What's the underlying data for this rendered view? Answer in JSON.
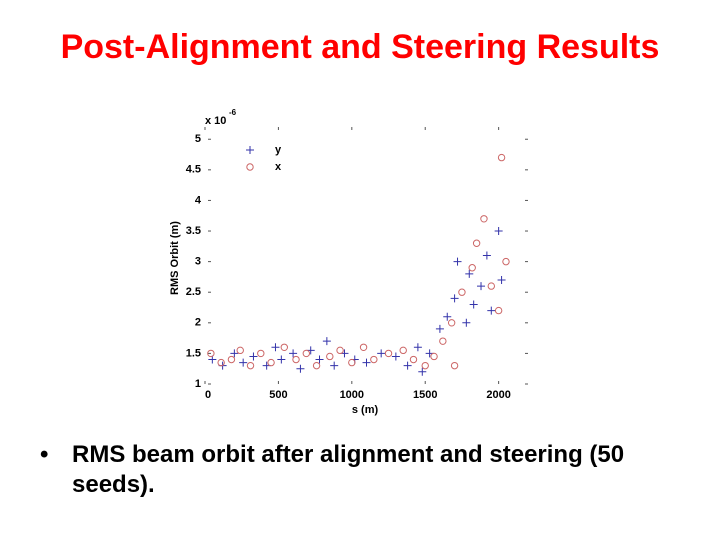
{
  "slide_title": "Post-Alignment and Steering Results",
  "chart_data": {
    "type": "scatter",
    "ylabel": "RMS Orbit (m)",
    "xlabel": "s (m)",
    "y_multiplier": "x 10",
    "y_multiplier_exponent": "-6",
    "xlim": [
      0,
      2200
    ],
    "xticks": [
      0,
      500,
      1000,
      1500,
      2000
    ],
    "ylim": [
      1,
      5.2
    ],
    "yticks": [
      1,
      1.5,
      2,
      2.5,
      3,
      3.5,
      4,
      4.5,
      5
    ],
    "grid": false,
    "series": [
      {
        "name": "y",
        "color": "#3333aa",
        "marker": "plus",
        "x": [
          50,
          120,
          200,
          260,
          330,
          420,
          480,
          520,
          600,
          650,
          720,
          780,
          830,
          880,
          950,
          1020,
          1100,
          1200,
          1300,
          1380,
          1450,
          1480,
          1530,
          1600,
          1650,
          1700,
          1720,
          1780,
          1800,
          1830,
          1880,
          1920,
          1950,
          2000,
          2020
        ],
        "values": [
          1.4,
          1.3,
          1.5,
          1.35,
          1.45,
          1.3,
          1.6,
          1.4,
          1.5,
          1.25,
          1.55,
          1.4,
          1.7,
          1.3,
          1.5,
          1.4,
          1.35,
          1.5,
          1.45,
          1.3,
          1.6,
          1.2,
          1.5,
          1.9,
          2.1,
          2.4,
          3.0,
          2.0,
          2.8,
          2.3,
          2.6,
          3.1,
          2.2,
          3.5,
          2.7
        ]
      },
      {
        "name": "x",
        "color": "#cc6666",
        "marker": "circle",
        "x": [
          40,
          110,
          180,
          240,
          310,
          380,
          450,
          540,
          620,
          690,
          760,
          850,
          920,
          1000,
          1080,
          1150,
          1250,
          1350,
          1420,
          1500,
          1560,
          1620,
          1680,
          1700,
          1750,
          1820,
          1850,
          1900,
          1950,
          2000,
          2020,
          2050
        ],
        "values": [
          1.5,
          1.35,
          1.4,
          1.55,
          1.3,
          1.5,
          1.35,
          1.6,
          1.4,
          1.5,
          1.3,
          1.45,
          1.55,
          1.35,
          1.6,
          1.4,
          1.5,
          1.55,
          1.4,
          1.3,
          1.45,
          1.7,
          2.0,
          1.3,
          2.5,
          2.9,
          3.3,
          3.7,
          2.6,
          2.2,
          4.7,
          3.0
        ]
      }
    ]
  },
  "bullets": [
    "RMS beam orbit after alignment and steering (50 seeds)."
  ]
}
